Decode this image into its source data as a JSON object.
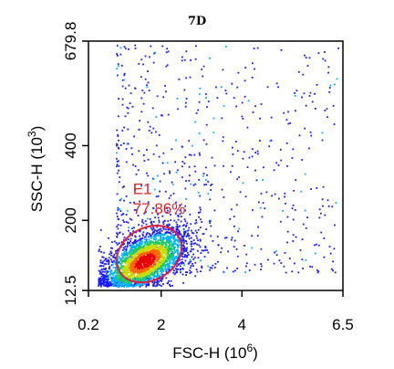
{
  "chart_data": {
    "type": "scatter",
    "title": "7D",
    "xlabel": "FSC-H",
    "xlabel_unit_base": "10",
    "xlabel_unit_exp": "6",
    "ylabel": "SSC-H",
    "ylabel_unit_base": "10",
    "ylabel_unit_exp": "3",
    "xlim": [
      0.2,
      6.5
    ],
    "ylim": [
      12.5,
      679.8
    ],
    "x_ticks": [
      {
        "value": 0.2,
        "label": "0.2"
      },
      {
        "value": 2,
        "label": "2"
      },
      {
        "value": 4,
        "label": "4"
      },
      {
        "value": 6.5,
        "label": "6.5"
      }
    ],
    "y_ticks": [
      {
        "value": 12.5,
        "label": "12.5"
      },
      {
        "value": 200,
        "label": "200"
      },
      {
        "value": 400,
        "label": "400"
      },
      {
        "value": 679.8,
        "label": "679.8"
      }
    ],
    "grid": false,
    "plot_style": "density pseudocolor dot plot",
    "density_colors": [
      "#1a1aff",
      "#00b4ff",
      "#1ec864",
      "#c8dc00",
      "#ff6400",
      "#e60000"
    ],
    "populations": [
      {
        "description": "main cluster",
        "center": [
          1.6,
          90
        ],
        "spread": [
          0.55,
          45
        ],
        "density": "high"
      },
      {
        "description": "scattered events",
        "x_range": [
          0.9,
          6.4
        ],
        "y_range": [
          60,
          670
        ],
        "density": "low"
      }
    ],
    "gates": [
      {
        "name": "E1",
        "percent": "77.86%",
        "shape": "ellipse",
        "center": [
          1.7,
          110
        ],
        "semi_axes": [
          0.85,
          70
        ],
        "rotation_deg": -30,
        "color": "#d9213a"
      }
    ]
  }
}
